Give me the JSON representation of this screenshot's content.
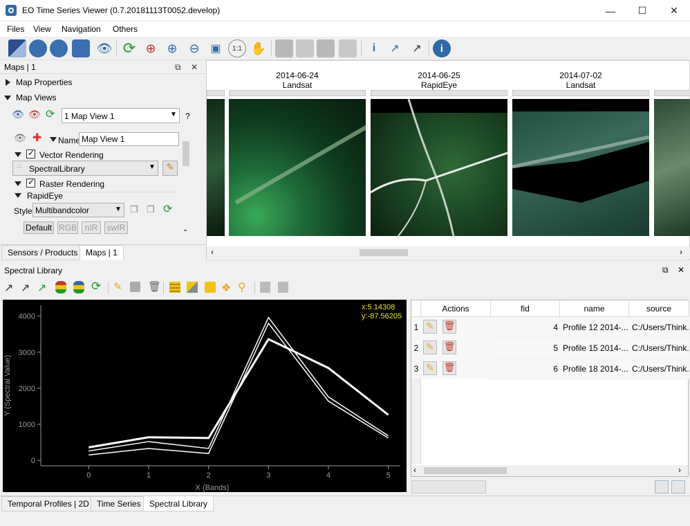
{
  "window": {
    "title": "EO Time Series Viewer (0.7.20181113T0052.develop)"
  },
  "menu": [
    "Files",
    "View",
    "Navigation",
    "Others"
  ],
  "maps_panel": {
    "title": "Maps | 1",
    "map_properties": "Map Properties",
    "map_views": "Map Views",
    "map_view_select": "1 Map View 1",
    "help": "?",
    "name_label": "Name",
    "name_value": "Map View 1",
    "vector_rendering": "Vector Rendering",
    "vector_source": "SpectralLibrary",
    "raster_rendering": "Raster Rendering",
    "sensor": "RapidEye",
    "style_label": "Style",
    "style_value": "Multibandcolor",
    "presets": [
      "Default",
      "RGB",
      "nIR",
      "swIR"
    ],
    "tabs": [
      "Sensors / Products",
      "Maps | 1"
    ]
  },
  "map_dates": [
    {
      "date": "2014-06-24",
      "sensor": "Landsat"
    },
    {
      "date": "2014-06-25",
      "sensor": "RapidEye"
    },
    {
      "date": "2014-07-02",
      "sensor": "Landsat"
    }
  ],
  "spectral_library": {
    "title": "Spectral Library",
    "cursor_x": "x:5.14308",
    "cursor_y": "y:-87.56205",
    "columns": [
      "Actions",
      "fid",
      "name",
      "source"
    ],
    "rows": [
      {
        "idx": "1",
        "fid": "4",
        "name": "Profile 12 2014-...",
        "source": "C:/Users/Think..."
      },
      {
        "idx": "2",
        "fid": "5",
        "name": "Profile 15 2014-...",
        "source": "C:/Users/Think..."
      },
      {
        "idx": "3",
        "fid": "6",
        "name": "Profile 18 2014-...",
        "source": "C:/Users/Think..."
      }
    ]
  },
  "bottom_tabs": [
    "Temporal Profiles | 2D",
    "Time Series",
    "Spectral Library"
  ],
  "chart_data": {
    "type": "line",
    "xlabel": "X (Bands)",
    "ylabel": "Y (Spectral Value)",
    "x": [
      0,
      1,
      2,
      3,
      4,
      5
    ],
    "xlim": [
      -0.8,
      5.2
    ],
    "ylim": [
      -150,
      4300
    ],
    "yticks": [
      0,
      1000,
      2000,
      3000,
      4000
    ],
    "series": [
      {
        "values": [
          360,
          640,
          620,
          3360,
          2560,
          1260
        ]
      },
      {
        "values": [
          260,
          520,
          330,
          3960,
          1760,
          680
        ]
      },
      {
        "values": [
          150,
          330,
          190,
          3800,
          1640,
          620
        ]
      }
    ]
  }
}
